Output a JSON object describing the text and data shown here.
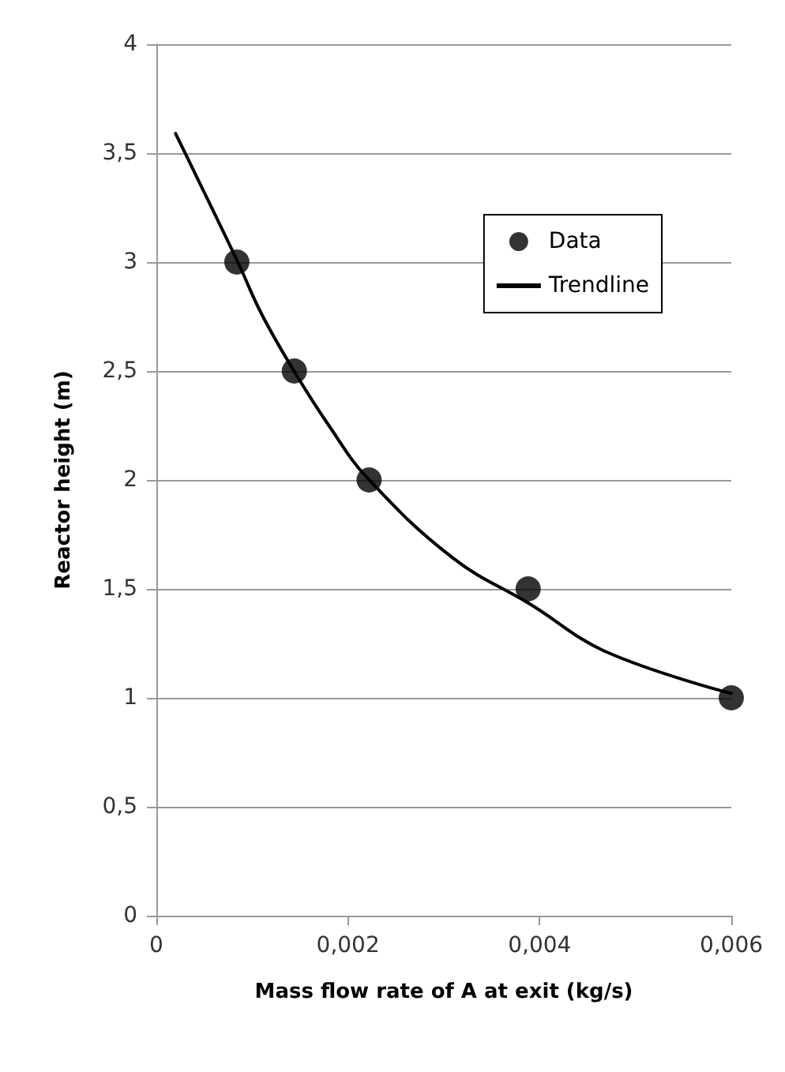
{
  "chart_data": {
    "type": "scatter",
    "xlabel": "Mass flow rate of A at exit (kg/s)",
    "ylabel": "Reactor height (m)",
    "xlim": [
      0,
      0.006
    ],
    "xticks": [
      0,
      {
        "value": 0.002,
        "label": "0,002"
      },
      {
        "value": 0.004,
        "label": "0,004"
      },
      {
        "value": 0.006,
        "label": "0,006"
      }
    ],
    "ylim": [
      0,
      4
    ],
    "yticks": [
      0,
      {
        "value": 0.5,
        "label": "0,5"
      },
      1,
      {
        "value": 1.5,
        "label": "1,5"
      },
      2,
      {
        "value": 2.5,
        "label": "2,5"
      },
      3,
      {
        "value": 3.5,
        "label": "3,5"
      },
      4
    ],
    "grid": "y",
    "legend": "top right",
    "series": [
      {
        "name": "Data",
        "marker": "circle",
        "color": "#000000",
        "x": [
          0.00084,
          0.00144,
          0.00222,
          0.00388,
          0.006
        ],
        "values": [
          3,
          2.5,
          2,
          1.5,
          1
        ]
      },
      {
        "name": "Trendline",
        "type": "line",
        "marker": "none",
        "color": "#000000",
        "x": [
          0.0002,
          0.0004,
          0.00085,
          0.0011,
          0.00145,
          0.0018,
          0.0022,
          0.0031,
          0.0039,
          0.0047,
          0.006
        ],
        "values": [
          3.59,
          3.41,
          3.0,
          2.76,
          2.49,
          2.25,
          2.01,
          1.64,
          1.43,
          1.21,
          1.02
        ]
      }
    ]
  }
}
